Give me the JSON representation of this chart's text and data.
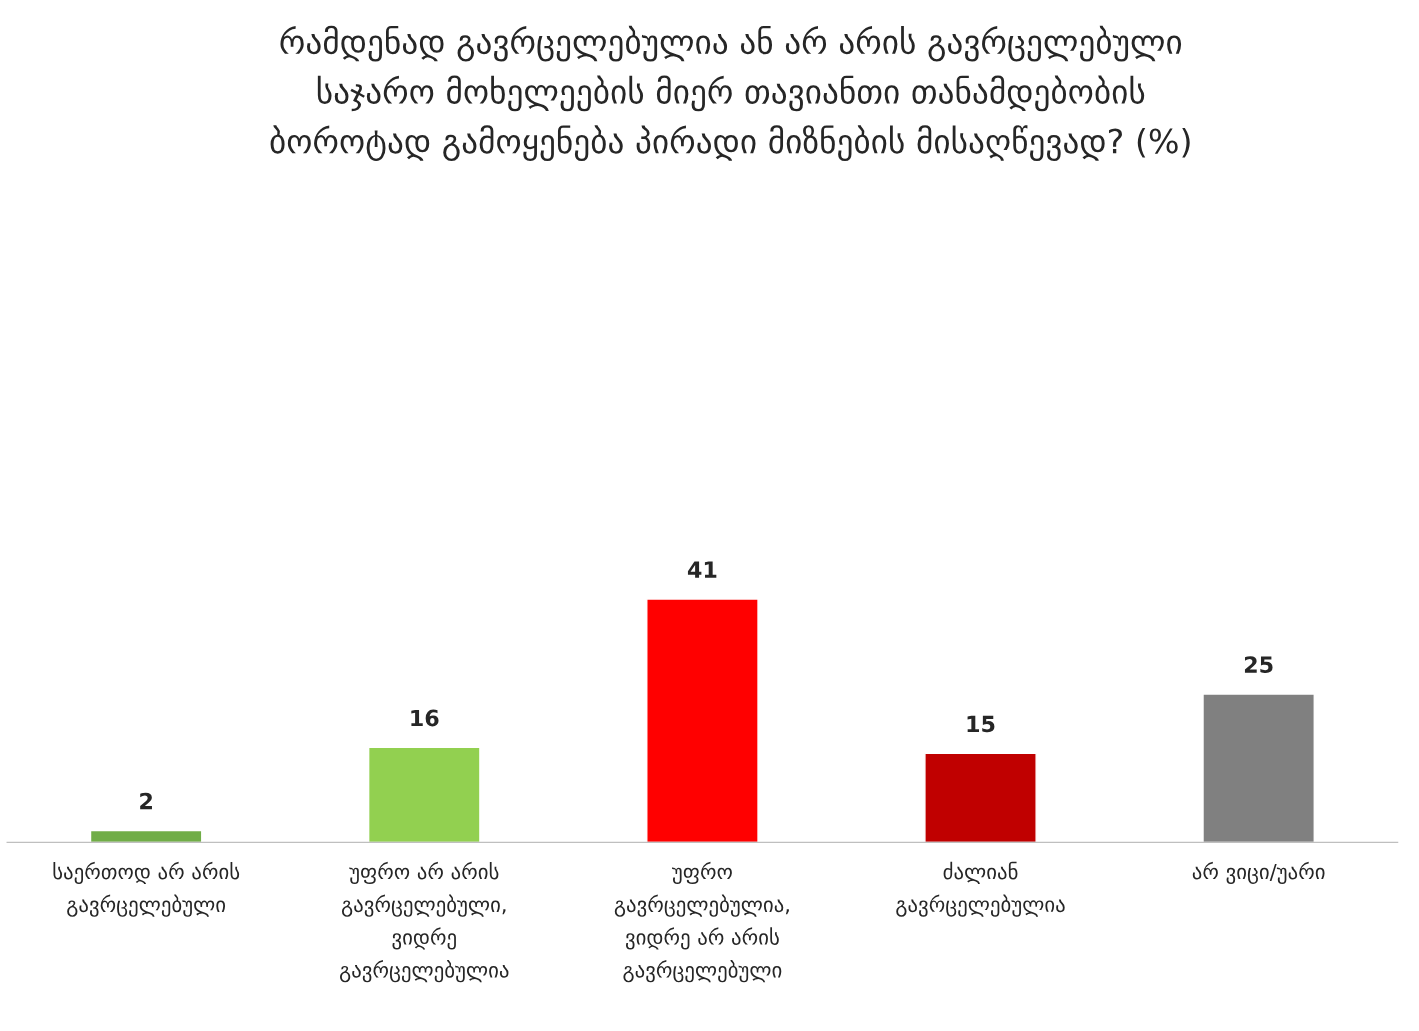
{
  "chart_data": {
    "type": "bar",
    "title": "რამდენად გავრცელებულია ან არ არის გავრცელებული\nსაჯარო მოხელეების მიერ თავიანთი თანამდებობის\nბოროტად გამოყენება პირადი მიზნების მისაღწევად? (%)",
    "categories": [
      "საერთოდ არ არის\nგავრცელებული",
      "უფრო არ არის\nგავრცელებული,\nვიდრე\nგავრცელებულია",
      "უფრო\nგავრცელებულია,\nვიდრე არ არის\nგავრცელებული",
      "ძალიან\nგავრცელებულია",
      "არ ვიცი/უარი"
    ],
    "values": [
      2,
      16,
      41,
      15,
      25
    ],
    "colors": [
      "#70ad47",
      "#92d050",
      "#ff0000",
      "#c00000",
      "#808080"
    ],
    "data_labels": true
  }
}
